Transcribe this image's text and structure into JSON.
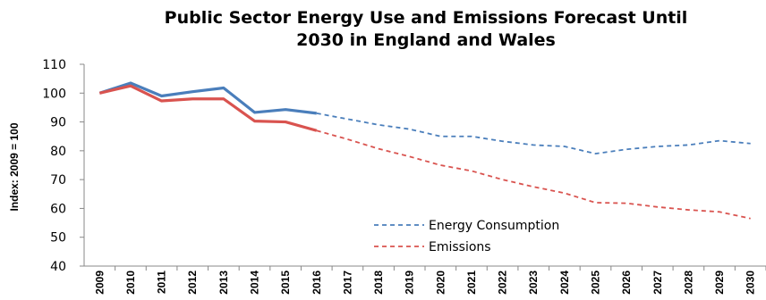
{
  "chart_data": {
    "type": "line",
    "title_line1": "Public Sector Energy Use and Emissions Forecast Until",
    "title_line2": "2030 in England and Wales",
    "ylabel": "Index: 2009 = 100",
    "xlabel": "",
    "ylim": [
      40,
      110
    ],
    "yticks": [
      40,
      50,
      60,
      70,
      80,
      90,
      100,
      110
    ],
    "x": [
      "2009",
      "2010",
      "2011",
      "2012",
      "2013",
      "2014",
      "2015",
      "2016",
      "2017",
      "2018",
      "2019",
      "2020",
      "2021",
      "2022",
      "2023",
      "2024",
      "2025",
      "2026",
      "2027",
      "2028",
      "2029",
      "2030"
    ],
    "grid": false,
    "legend_position": "bottom-center",
    "series": [
      {
        "name": "Energy Consumption",
        "color": "#4a7ebb",
        "actual": [
          100,
          103.5,
          99,
          100.5,
          101.8,
          93.3,
          94.3,
          93
        ],
        "forecast_from_index": 7,
        "forecast": [
          93,
          91,
          89,
          87.5,
          85,
          85,
          83.3,
          82,
          81.5,
          79,
          80.5,
          81.5,
          82,
          83.5,
          82.5
        ]
      },
      {
        "name": "Emissions",
        "color": "#d9534f",
        "actual": [
          100,
          102.5,
          97.3,
          98,
          98,
          90.3,
          90,
          87
        ],
        "forecast_from_index": 7,
        "forecast": [
          87,
          84,
          80.7,
          78,
          75,
          73,
          70,
          67.5,
          65.3,
          62,
          61.8,
          60.5,
          59.5,
          58.8,
          56.5
        ]
      }
    ]
  }
}
